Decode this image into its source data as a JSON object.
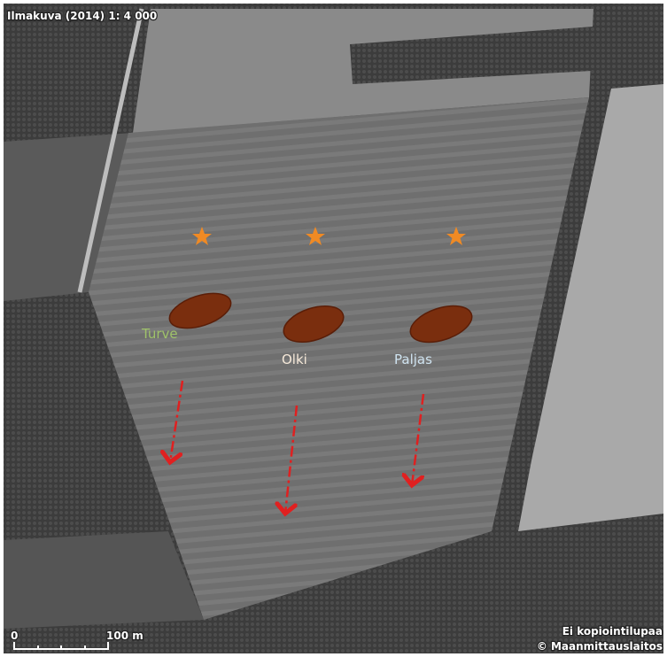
{
  "header": {
    "title": "Ilmakuva (2014) 1: 4 000"
  },
  "plots": [
    {
      "label": "Turve"
    },
    {
      "label": "Olki"
    },
    {
      "label": "Paljas"
    }
  ],
  "scale": {
    "start": "0",
    "end": "100 m"
  },
  "footer": {
    "notice": "Ei kopiointilupaa",
    "copyright": "© Maanmittauslaitos"
  }
}
